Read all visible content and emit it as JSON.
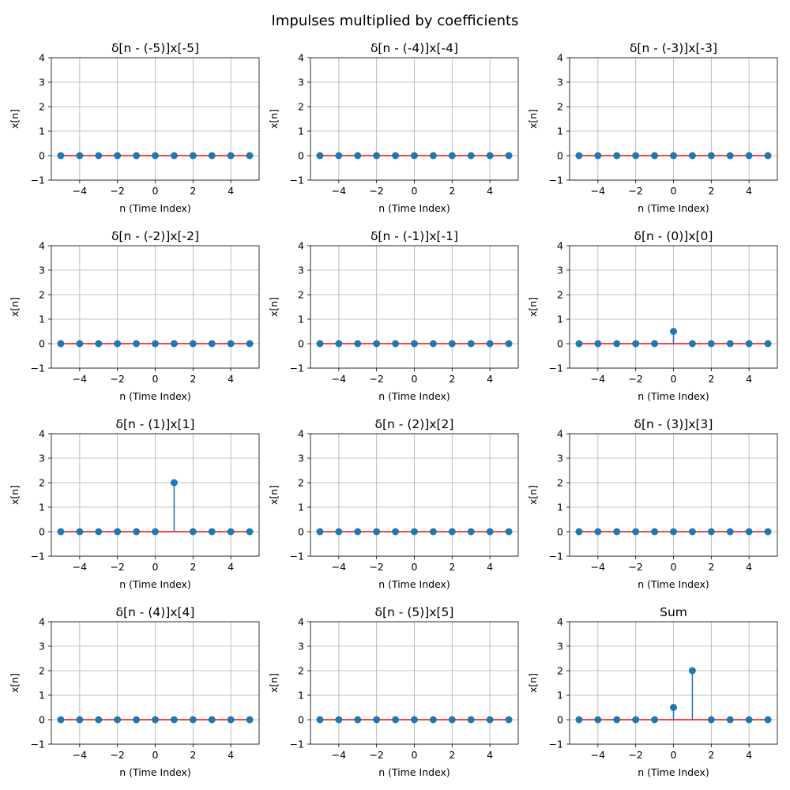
{
  "figure": {
    "suptitle": "Impulses multiplied by coefficients"
  },
  "style": {
    "stem_color": "#1f77b4",
    "baseline_color": "#ff0000",
    "grid_color": "#b0b0b0",
    "grid": true
  },
  "chart_data": [
    {
      "type": "stem",
      "title": "δ[n - (-5)]x[-5]",
      "xlabel": "n (Time Index)",
      "ylabel": "x[n]",
      "x": [
        -5,
        -4,
        -3,
        -2,
        -1,
        0,
        1,
        2,
        3,
        4,
        5
      ],
      "y": [
        0,
        0,
        0,
        0,
        0,
        0,
        0,
        0,
        0,
        0,
        0
      ],
      "xlim": [
        -5.5,
        5.5
      ],
      "ylim": [
        -1,
        4
      ],
      "xticks": [
        -4,
        -2,
        0,
        2,
        4
      ],
      "yticks": [
        -1,
        0,
        1,
        2,
        3,
        4
      ]
    },
    {
      "type": "stem",
      "title": "δ[n - (-4)]x[-4]",
      "xlabel": "n (Time Index)",
      "ylabel": "x[n]",
      "x": [
        -5,
        -4,
        -3,
        -2,
        -1,
        0,
        1,
        2,
        3,
        4,
        5
      ],
      "y": [
        0,
        0,
        0,
        0,
        0,
        0,
        0,
        0,
        0,
        0,
        0
      ],
      "xlim": [
        -5.5,
        5.5
      ],
      "ylim": [
        -1,
        4
      ],
      "xticks": [
        -4,
        -2,
        0,
        2,
        4
      ],
      "yticks": [
        -1,
        0,
        1,
        2,
        3,
        4
      ]
    },
    {
      "type": "stem",
      "title": "δ[n - (-3)]x[-3]",
      "xlabel": "n (Time Index)",
      "ylabel": "x[n]",
      "x": [
        -5,
        -4,
        -3,
        -2,
        -1,
        0,
        1,
        2,
        3,
        4,
        5
      ],
      "y": [
        0,
        0,
        0,
        0,
        0,
        0,
        0,
        0,
        0,
        0,
        0
      ],
      "xlim": [
        -5.5,
        5.5
      ],
      "ylim": [
        -1,
        4
      ],
      "xticks": [
        -4,
        -2,
        0,
        2,
        4
      ],
      "yticks": [
        -1,
        0,
        1,
        2,
        3,
        4
      ]
    },
    {
      "type": "stem",
      "title": "δ[n - (-2)]x[-2]",
      "xlabel": "n (Time Index)",
      "ylabel": "x[n]",
      "x": [
        -5,
        -4,
        -3,
        -2,
        -1,
        0,
        1,
        2,
        3,
        4,
        5
      ],
      "y": [
        0,
        0,
        0,
        0,
        0,
        0,
        0,
        0,
        0,
        0,
        0
      ],
      "xlim": [
        -5.5,
        5.5
      ],
      "ylim": [
        -1,
        4
      ],
      "xticks": [
        -4,
        -2,
        0,
        2,
        4
      ],
      "yticks": [
        -1,
        0,
        1,
        2,
        3,
        4
      ]
    },
    {
      "type": "stem",
      "title": "δ[n - (-1)]x[-1]",
      "xlabel": "n (Time Index)",
      "ylabel": "x[n]",
      "x": [
        -5,
        -4,
        -3,
        -2,
        -1,
        0,
        1,
        2,
        3,
        4,
        5
      ],
      "y": [
        0,
        0,
        0,
        0,
        0,
        0,
        0,
        0,
        0,
        0,
        0
      ],
      "xlim": [
        -5.5,
        5.5
      ],
      "ylim": [
        -1,
        4
      ],
      "xticks": [
        -4,
        -2,
        0,
        2,
        4
      ],
      "yticks": [
        -1,
        0,
        1,
        2,
        3,
        4
      ]
    },
    {
      "type": "stem",
      "title": "δ[n - (0)]x[0]",
      "xlabel": "n (Time Index)",
      "ylabel": "x[n]",
      "x": [
        -5,
        -4,
        -3,
        -2,
        -1,
        0,
        1,
        2,
        3,
        4,
        5
      ],
      "y": [
        0,
        0,
        0,
        0,
        0,
        0.5,
        0,
        0,
        0,
        0,
        0
      ],
      "xlim": [
        -5.5,
        5.5
      ],
      "ylim": [
        -1,
        4
      ],
      "xticks": [
        -4,
        -2,
        0,
        2,
        4
      ],
      "yticks": [
        -1,
        0,
        1,
        2,
        3,
        4
      ]
    },
    {
      "type": "stem",
      "title": "δ[n - (1)]x[1]",
      "xlabel": "n (Time Index)",
      "ylabel": "x[n]",
      "x": [
        -5,
        -4,
        -3,
        -2,
        -1,
        0,
        1,
        2,
        3,
        4,
        5
      ],
      "y": [
        0,
        0,
        0,
        0,
        0,
        0,
        2,
        0,
        0,
        0,
        0
      ],
      "xlim": [
        -5.5,
        5.5
      ],
      "ylim": [
        -1,
        4
      ],
      "xticks": [
        -4,
        -2,
        0,
        2,
        4
      ],
      "yticks": [
        -1,
        0,
        1,
        2,
        3,
        4
      ]
    },
    {
      "type": "stem",
      "title": "δ[n - (2)]x[2]",
      "xlabel": "n (Time Index)",
      "ylabel": "x[n]",
      "x": [
        -5,
        -4,
        -3,
        -2,
        -1,
        0,
        1,
        2,
        3,
        4,
        5
      ],
      "y": [
        0,
        0,
        0,
        0,
        0,
        0,
        0,
        0,
        0,
        0,
        0
      ],
      "xlim": [
        -5.5,
        5.5
      ],
      "ylim": [
        -1,
        4
      ],
      "xticks": [
        -4,
        -2,
        0,
        2,
        4
      ],
      "yticks": [
        -1,
        0,
        1,
        2,
        3,
        4
      ]
    },
    {
      "type": "stem",
      "title": "δ[n - (3)]x[3]",
      "xlabel": "n (Time Index)",
      "ylabel": "x[n]",
      "x": [
        -5,
        -4,
        -3,
        -2,
        -1,
        0,
        1,
        2,
        3,
        4,
        5
      ],
      "y": [
        0,
        0,
        0,
        0,
        0,
        0,
        0,
        0,
        0,
        0,
        0
      ],
      "xlim": [
        -5.5,
        5.5
      ],
      "ylim": [
        -1,
        4
      ],
      "xticks": [
        -4,
        -2,
        0,
        2,
        4
      ],
      "yticks": [
        -1,
        0,
        1,
        2,
        3,
        4
      ]
    },
    {
      "type": "stem",
      "title": "δ[n - (4)]x[4]",
      "xlabel": "n (Time Index)",
      "ylabel": "x[n]",
      "x": [
        -5,
        -4,
        -3,
        -2,
        -1,
        0,
        1,
        2,
        3,
        4,
        5
      ],
      "y": [
        0,
        0,
        0,
        0,
        0,
        0,
        0,
        0,
        0,
        0,
        0
      ],
      "xlim": [
        -5.5,
        5.5
      ],
      "ylim": [
        -1,
        4
      ],
      "xticks": [
        -4,
        -2,
        0,
        2,
        4
      ],
      "yticks": [
        -1,
        0,
        1,
        2,
        3,
        4
      ]
    },
    {
      "type": "stem",
      "title": "δ[n - (5)]x[5]",
      "xlabel": "n (Time Index)",
      "ylabel": "x[n]",
      "x": [
        -5,
        -4,
        -3,
        -2,
        -1,
        0,
        1,
        2,
        3,
        4,
        5
      ],
      "y": [
        0,
        0,
        0,
        0,
        0,
        0,
        0,
        0,
        0,
        0,
        0
      ],
      "xlim": [
        -5.5,
        5.5
      ],
      "ylim": [
        -1,
        4
      ],
      "xticks": [
        -4,
        -2,
        0,
        2,
        4
      ],
      "yticks": [
        -1,
        0,
        1,
        2,
        3,
        4
      ]
    },
    {
      "type": "stem",
      "title": "Sum",
      "xlabel": "n (Time Index)",
      "ylabel": "x[n]",
      "x": [
        -5,
        -4,
        -3,
        -2,
        -1,
        0,
        1,
        2,
        3,
        4,
        5
      ],
      "y": [
        0,
        0,
        0,
        0,
        0,
        0.5,
        2,
        0,
        0,
        0,
        0
      ],
      "xlim": [
        -5.5,
        5.5
      ],
      "ylim": [
        -1,
        4
      ],
      "xticks": [
        -4,
        -2,
        0,
        2,
        4
      ],
      "yticks": [
        -1,
        0,
        1,
        2,
        3,
        4
      ]
    }
  ]
}
